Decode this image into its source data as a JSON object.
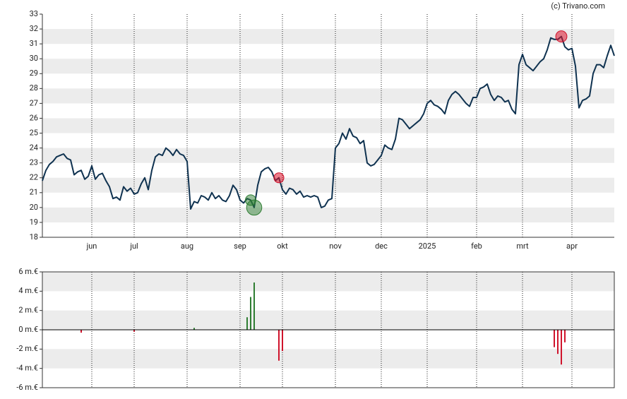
{
  "chart_data": [
    {
      "type": "line",
      "source": "(c) Trivano.com",
      "color": "#0f3250",
      "grid": true,
      "categories": [
        null,
        null,
        null,
        null,
        null,
        null,
        null,
        null,
        null,
        null,
        null,
        null,
        null,
        null,
        "jun",
        null,
        null,
        null,
        null,
        null,
        null,
        null,
        null,
        null,
        null,
        null,
        "jul",
        null,
        null,
        null,
        null,
        null,
        null,
        null,
        null,
        null,
        null,
        null,
        null,
        null,
        null,
        "aug",
        null,
        null,
        null,
        null,
        null,
        null,
        null,
        null,
        null,
        null,
        null,
        null,
        null,
        null,
        "sep",
        null,
        null,
        null,
        null,
        null,
        null,
        null,
        null,
        null,
        null,
        null,
        "okt",
        null,
        null,
        null,
        null,
        null,
        null,
        null,
        null,
        null,
        null,
        null,
        null,
        null,
        null,
        "nov",
        null,
        null,
        null,
        null,
        null,
        null,
        null,
        null,
        null,
        null,
        null,
        null,
        "dec",
        null,
        null,
        null,
        null,
        null,
        null,
        null,
        null,
        null,
        null,
        null,
        null,
        "2025",
        null,
        null,
        null,
        null,
        null,
        null,
        null,
        null,
        null,
        null,
        null,
        null,
        null,
        "feb",
        null,
        null,
        null,
        null,
        null,
        null,
        null,
        null,
        null,
        null,
        null,
        null,
        "mrt",
        null,
        null,
        null,
        null,
        null,
        null,
        null,
        null,
        null,
        null,
        null,
        null,
        null,
        "apr",
        null,
        null,
        null,
        null,
        null,
        null,
        null,
        null,
        null,
        null,
        null,
        null
      ],
      "values": [
        21.8,
        22.5,
        22.9,
        23.1,
        23.4,
        23.5,
        23.6,
        23.3,
        23.2,
        22.2,
        22.4,
        22.5,
        21.9,
        22.1,
        22.8,
        21.9,
        22.2,
        22.3,
        21.8,
        21.4,
        20.6,
        20.7,
        20.5,
        21.4,
        21.1,
        21.3,
        20.9,
        21.0,
        21.6,
        22.0,
        21.2,
        22.5,
        23.4,
        23.6,
        23.5,
        24.0,
        23.8,
        23.5,
        23.9,
        23.6,
        23.5,
        23.1,
        19.9,
        20.4,
        20.3,
        20.8,
        20.7,
        20.5,
        21.0,
        20.6,
        20.8,
        20.5,
        20.4,
        20.8,
        21.5,
        21.2,
        20.5,
        20.3,
        20.6,
        20.5,
        20.0,
        21.5,
        22.4,
        22.6,
        22.7,
        22.4,
        21.8,
        22.0,
        21.2,
        20.9,
        21.3,
        21.2,
        20.9,
        21.1,
        20.7,
        20.8,
        20.7,
        20.8,
        20.7,
        20.0,
        20.1,
        20.5,
        20.6,
        24.0,
        24.3,
        25.0,
        24.6,
        25.3,
        24.8,
        24.7,
        24.3,
        24.5,
        23.0,
        22.8,
        22.9,
        23.2,
        23.5,
        24.2,
        24.0,
        23.9,
        24.6,
        26.0,
        25.9,
        25.6,
        25.3,
        25.5,
        25.7,
        25.9,
        26.3,
        27.0,
        27.2,
        26.9,
        26.8,
        26.6,
        26.3,
        27.2,
        27.6,
        27.8,
        27.6,
        27.3,
        27.0,
        26.8,
        27.4,
        27.4,
        28.0,
        28.1,
        28.3,
        27.6,
        27.2,
        27.5,
        27.4,
        27.1,
        27.2,
        26.6,
        26.3,
        29.6,
        30.3,
        29.6,
        29.4,
        29.2,
        29.5,
        29.8,
        30.0,
        30.6,
        31.4,
        31.3,
        31.3,
        31.5,
        30.8,
        30.6,
        30.7,
        29.5,
        26.7,
        27.2,
        27.3,
        27.5,
        29.0,
        29.6,
        29.6,
        29.4,
        30.2,
        30.9,
        30.2
      ],
      "ylim": [
        18,
        33
      ],
      "yticks": [
        18,
        19,
        20,
        21,
        22,
        23,
        24,
        25,
        26,
        27,
        28,
        29,
        30,
        31,
        32,
        33
      ]
    },
    {
      "type": "bar",
      "grid": true,
      "up_color": "#2e7d32",
      "down_color": "#d0142c",
      "values": [
        null,
        null,
        null,
        null,
        null,
        null,
        null,
        null,
        null,
        null,
        null,
        -0.3,
        null,
        null,
        null,
        null,
        null,
        null,
        null,
        null,
        null,
        null,
        null,
        null,
        null,
        null,
        -0.2,
        null,
        null,
        null,
        null,
        null,
        null,
        null,
        null,
        null,
        null,
        null,
        null,
        null,
        null,
        null,
        null,
        0.2,
        null,
        null,
        null,
        null,
        null,
        null,
        null,
        null,
        null,
        null,
        null,
        null,
        null,
        null,
        1.3,
        3.4,
        4.9,
        null,
        null,
        null,
        null,
        null,
        null,
        -3.2,
        -2.2,
        null,
        null,
        null,
        null,
        null,
        null,
        null,
        null,
        null,
        null,
        null,
        null,
        null,
        null,
        null,
        null,
        null,
        null,
        null,
        null,
        null,
        null,
        null,
        null,
        null,
        null,
        null,
        null,
        null,
        null,
        null,
        null,
        null,
        null,
        null,
        null,
        null,
        null,
        null,
        null,
        null,
        null,
        null,
        null,
        null,
        null,
        null,
        null,
        null,
        null,
        null,
        null,
        null,
        null,
        null,
        null,
        null,
        null,
        null,
        null,
        null,
        null,
        null,
        null,
        null,
        null,
        null,
        null,
        null,
        null,
        null,
        null,
        null,
        null,
        null,
        null,
        -1.8,
        -2.5,
        -3.6,
        -1.3,
        null,
        null,
        null,
        null,
        null,
        null,
        null,
        null,
        null,
        null,
        null,
        null,
        null,
        null
      ],
      "ylim": [
        -6,
        6
      ],
      "yticks": [
        {
          "value": -6,
          "label": "-6 m.€"
        },
        {
          "value": -4,
          "label": "-4 m.€"
        },
        {
          "value": -2,
          "label": "-2 m.€"
        },
        {
          "value": 0,
          "label": "0 m.€"
        },
        {
          "value": 2,
          "label": "2 m.€"
        },
        {
          "value": 4,
          "label": "4 m.€"
        },
        {
          "value": 6,
          "label": "6 m.€"
        }
      ]
    }
  ]
}
